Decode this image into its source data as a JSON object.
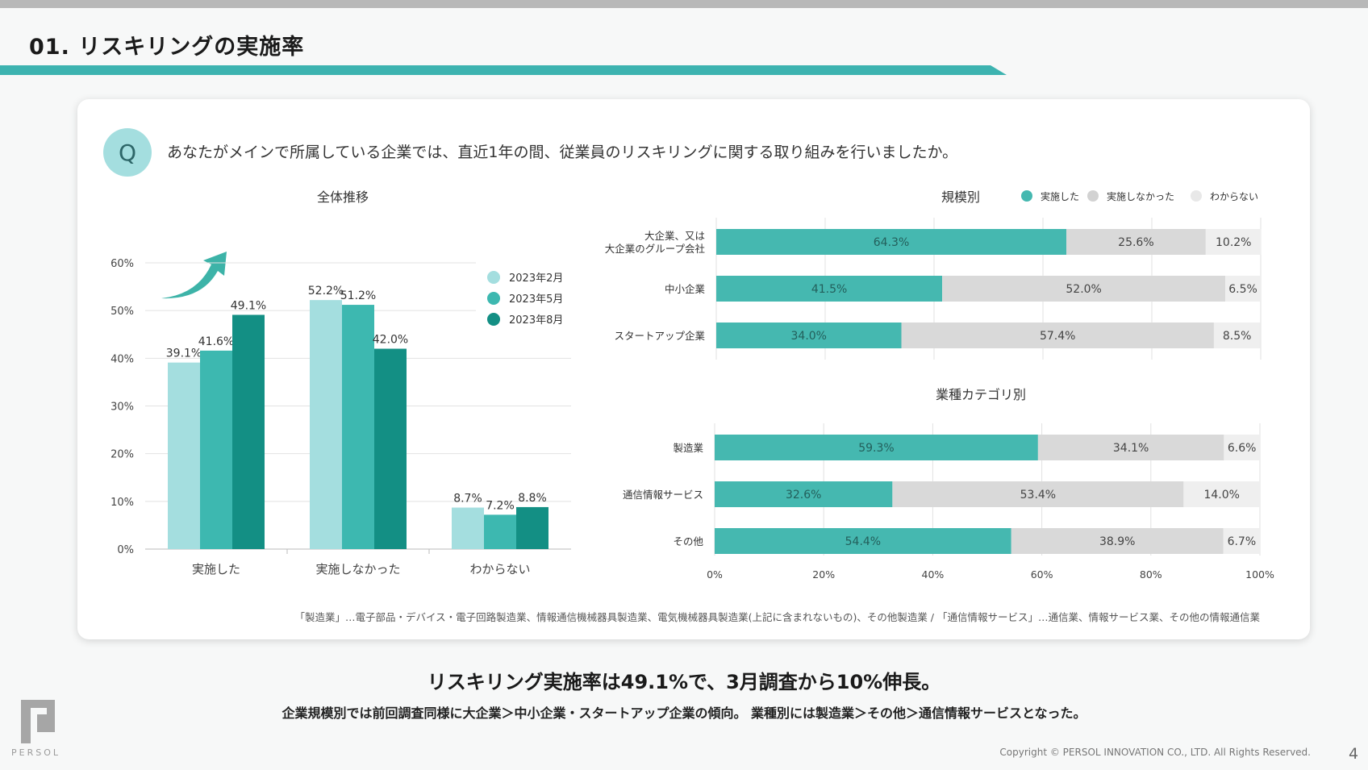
{
  "page": {
    "title": "01. リスキリングの実施率",
    "page_number": "4",
    "copyright": "Copyright © PERSOL INNOVATION CO., LTD. All Rights Reserved.",
    "logo_text": "PERSOL"
  },
  "question": {
    "badge": "Q",
    "text": "あなたがメインで所属している企業では、直近1年の間、従業員のリスキリングに関する取り組みを行いましたか。"
  },
  "footnote": "「製造業」…電子部品・デバイス・電子回路製造業、情報通信機械器具製造業、電気機械器具製造業(上記に含まれないもの)、その他製造業 / 「通信情報サービス」…通信業、情報サービス業、その他の情報通信業",
  "summary": {
    "headline": "リスキリング実施率は49.1%で、3月調査から10%伸長。",
    "subline": "企業規模別では前回調査同様に大企業＞中小企業・スタートアップ企業の傾向。 業種別には製造業＞その他＞通信情報サービスとなった。"
  },
  "colors": {
    "accent": "#3db3b0",
    "light": "#a4dedf",
    "mid": "#3db8b0",
    "dark": "#138f84",
    "bar_done": "#45b8b0",
    "bar_not": "#d9d9d9",
    "bar_unknown": "#efefef"
  },
  "chart_data": [
    {
      "type": "bar",
      "title": "全体推移",
      "categories": [
        "実施した",
        "実施しなかった",
        "わからない"
      ],
      "series": [
        {
          "name": "2023年2月",
          "values": [
            39.1,
            52.2,
            8.7
          ],
          "labels": [
            "39.1%",
            "52.2%",
            "8.7%"
          ]
        },
        {
          "name": "2023年5月",
          "values": [
            41.6,
            51.2,
            7.2
          ],
          "labels": [
            "41.6%",
            "51.2%",
            "7.2%"
          ]
        },
        {
          "name": "2023年8月",
          "values": [
            49.1,
            42.0,
            8.8
          ],
          "labels": [
            "49.1%",
            "42.0%",
            "8.8%"
          ]
        }
      ],
      "yticks": [
        "0%",
        "10%",
        "20%",
        "30%",
        "40%",
        "50%",
        "60%"
      ],
      "ylim": [
        0,
        60
      ],
      "grid": true,
      "legend": "top-right"
    },
    {
      "type": "bar",
      "orientation": "horizontal",
      "stacked": true,
      "title": "規模別",
      "categories": [
        [
          "大企業、又は",
          "大企業のグループ会社"
        ],
        [
          "中小企業"
        ],
        [
          "スタートアップ企業"
        ]
      ],
      "series": [
        {
          "name": "実施した",
          "values": [
            64.3,
            41.5,
            34.0
          ],
          "labels": [
            "64.3%",
            "41.5%",
            "34.0%"
          ]
        },
        {
          "name": "実施しなかった",
          "values": [
            25.6,
            52.0,
            57.4
          ],
          "labels": [
            "25.6%",
            "52.0%",
            "57.4%"
          ]
        },
        {
          "name": "わからない",
          "values": [
            10.2,
            6.5,
            8.5
          ],
          "labels": [
            "10.2%",
            "6.5%",
            "8.5%"
          ]
        }
      ],
      "xlim": [
        0,
        100
      ],
      "legend": "top-right"
    },
    {
      "type": "bar",
      "orientation": "horizontal",
      "stacked": true,
      "title": "業種カテゴリ別",
      "categories": [
        [
          "製造業"
        ],
        [
          "通信情報サービス"
        ],
        [
          "その他"
        ]
      ],
      "series": [
        {
          "name": "実施した",
          "values": [
            59.3,
            32.6,
            54.4
          ],
          "labels": [
            "59.3%",
            "32.6%",
            "54.4%"
          ]
        },
        {
          "name": "実施しなかった",
          "values": [
            34.1,
            53.4,
            38.9
          ],
          "labels": [
            "34.1%",
            "53.4%",
            "38.9%"
          ]
        },
        {
          "name": "わからない",
          "values": [
            6.6,
            14.0,
            6.7
          ],
          "labels": [
            "6.6%",
            "14.0%",
            "6.7%"
          ]
        }
      ],
      "xticks": [
        "0%",
        "20%",
        "40%",
        "60%",
        "80%",
        "100%"
      ],
      "xlim": [
        0,
        100
      ]
    }
  ]
}
